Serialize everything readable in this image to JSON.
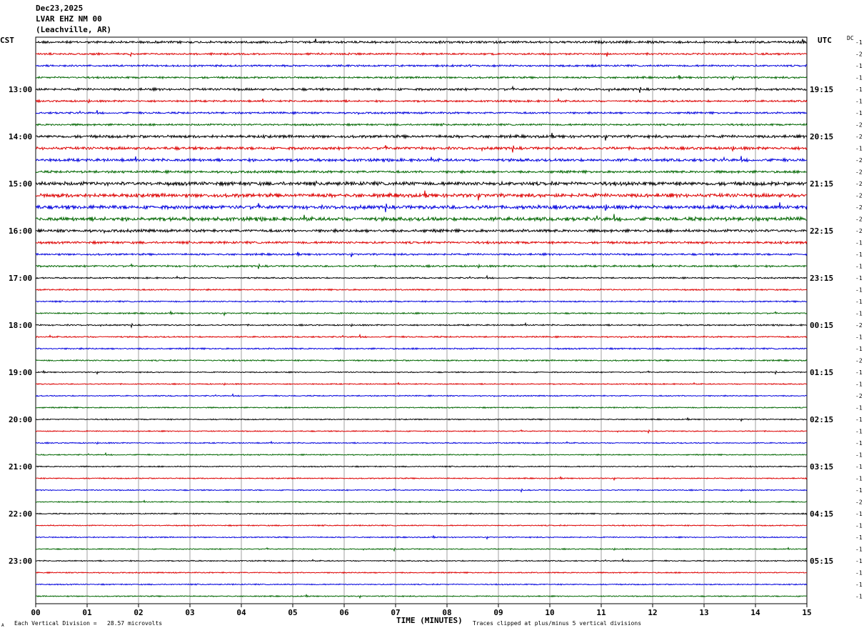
{
  "header": {
    "date": "Dec23,2025",
    "station": "LVAR EHZ NM 00",
    "location": "(Leachville, AR)"
  },
  "left_timezone": "CST",
  "right_timezone": "UTC",
  "dc_label": "DC",
  "footer": {
    "scale_text": "Each Vertical Division =   28.57 microvolts",
    "clip_text": "Traces clipped at plus/minus 5 vertical divisions",
    "corner_mark": "A"
  },
  "chart_data": {
    "type": "line",
    "xlabel": "TIME (MINUTES)",
    "x_ticks": [
      "00",
      "01",
      "02",
      "03",
      "04",
      "05",
      "06",
      "07",
      "08",
      "09",
      "10",
      "11",
      "12",
      "13",
      "14",
      "15"
    ],
    "xlim": [
      0,
      15
    ],
    "trace_colors": [
      "#000000",
      "#dd0000",
      "#0000dd",
      "#006600"
    ],
    "left_hour_labels": [
      "13:00",
      "14:00",
      "15:00",
      "16:00",
      "17:00",
      "18:00",
      "19:00",
      "20:00",
      "21:00",
      "22:00",
      "23:00"
    ],
    "right_hour_labels": [
      "19:15",
      "20:15",
      "21:15",
      "22:15",
      "23:15",
      "00:15",
      "01:15",
      "02:15",
      "03:15",
      "04:15",
      "05:15"
    ],
    "dc_offsets": [
      "-1",
      "-2",
      "-1",
      "-1",
      "-1",
      "-1",
      "-1",
      "-2",
      "-2",
      "-1",
      "-2",
      "-2",
      "-2",
      "-2",
      "-2",
      "-2",
      "-2",
      "-1",
      "-1",
      "-1",
      "-1",
      "-1",
      "-1",
      "-1",
      "-2",
      "-1",
      "-1",
      "-2",
      "-1",
      "-1",
      "-2",
      "-1",
      "-1",
      "-1",
      "-1",
      "-1",
      "-1",
      "-1",
      "-1",
      "-2",
      "-1",
      "-1",
      "-1",
      "-1",
      "-1",
      "-1",
      "-1",
      "-1"
    ],
    "trace_amplitude": [
      2.5,
      2,
      2,
      2,
      2.5,
      2,
      2,
      2,
      3,
      3,
      3,
      2.5,
      4,
      4,
      4,
      4,
      3,
      2.5,
      2,
      2,
      1.5,
      1.5,
      1.5,
      1.5,
      1.5,
      1.5,
      1.5,
      1.5,
      1.2,
      1.2,
      1.2,
      1.2,
      1.2,
      1.2,
      1.2,
      1.2,
      1.2,
      1.2,
      1.2,
      1.2,
      1.2,
      1.2,
      1.2,
      1.2,
      1.2,
      1.2,
      1.2,
      1.2
    ]
  }
}
